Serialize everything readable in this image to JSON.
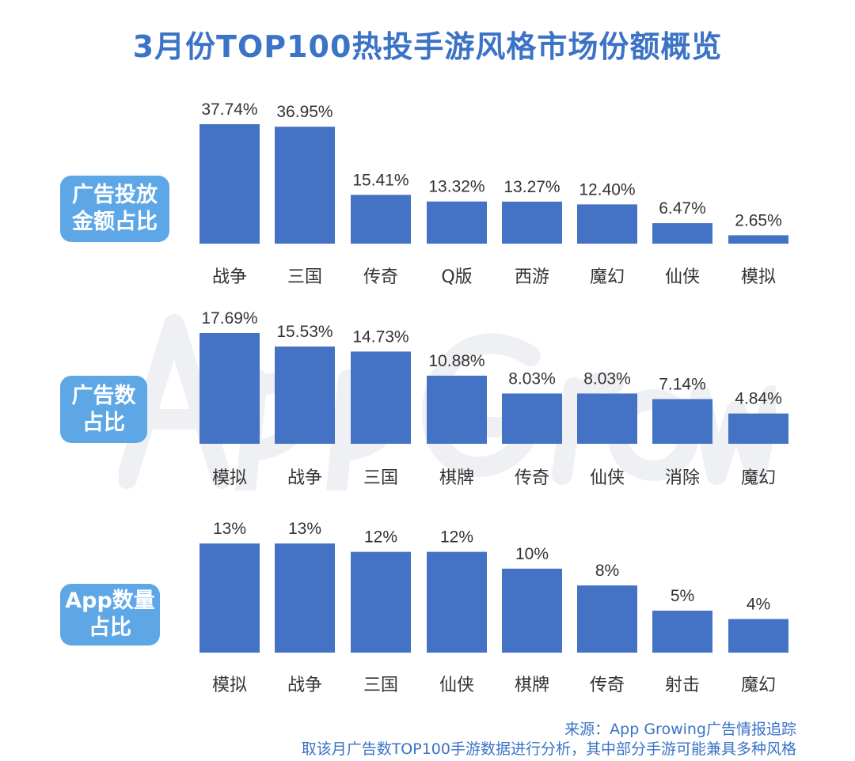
{
  "title": "3月份TOP100热投手游风格市场份额概览",
  "watermark": "App Growing",
  "bar_color": "#4472C4",
  "label_box_color": "#5EA7E6",
  "title_color": "#3B73C6",
  "footer": {
    "source": "来源：App Growing广告情报追踪",
    "note": "取该月广告数TOP100手游数据进行分析，其中部分手游可能兼具多种风格"
  },
  "chart_data": [
    {
      "type": "bar",
      "label": "广告投放\n金额占比",
      "categories": [
        "战争",
        "三国",
        "传奇",
        "Q版",
        "西游",
        "魔幻",
        "仙侠",
        "模拟"
      ],
      "values": [
        37.74,
        36.95,
        15.41,
        13.32,
        13.27,
        12.4,
        6.47,
        2.65
      ],
      "value_labels": [
        "37.74%",
        "36.95%",
        "15.41%",
        "13.32%",
        "13.27%",
        "12.40%",
        "6.47%",
        "2.65%"
      ],
      "unit": "%"
    },
    {
      "type": "bar",
      "label": "广告数\n占比",
      "categories": [
        "模拟",
        "战争",
        "三国",
        "棋牌",
        "传奇",
        "仙侠",
        "消除",
        "魔幻"
      ],
      "values": [
        17.69,
        15.53,
        14.73,
        10.88,
        8.03,
        8.03,
        7.14,
        4.84
      ],
      "value_labels": [
        "17.69%",
        "15.53%",
        "14.73%",
        "10.88%",
        "8.03%",
        "8.03%",
        "7.14%",
        "4.84%"
      ],
      "unit": "%"
    },
    {
      "type": "bar",
      "label": "App数量\n占比",
      "categories": [
        "模拟",
        "战争",
        "三国",
        "仙侠",
        "棋牌",
        "传奇",
        "射击",
        "魔幻"
      ],
      "values": [
        13,
        13,
        12,
        12,
        10,
        8,
        5,
        4
      ],
      "value_labels": [
        "13%",
        "13%",
        "12%",
        "12%",
        "10%",
        "8%",
        "5%",
        "4%"
      ],
      "unit": "%"
    }
  ]
}
